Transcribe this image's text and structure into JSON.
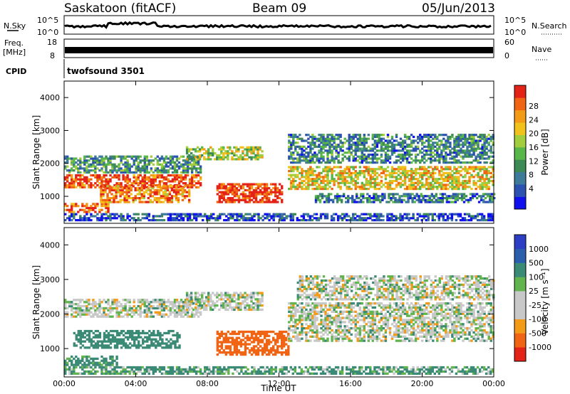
{
  "header": {
    "title": "Saskatoon (fitACF)",
    "beam": "Beam 09",
    "date": "05/Jun/2013"
  },
  "top_panels": {
    "nsky_label": "N.Sky",
    "nsky_ticks": [
      "10^5",
      "10^0"
    ],
    "nsearch_label": "N.Search",
    "freq_label_1": "Freq.",
    "freq_label_2": "[MHz]",
    "freq_ticks": [
      "18",
      "8"
    ],
    "nave_label": "Nave",
    "nave_ticks": [
      "60",
      "0"
    ],
    "cpid_label": "CPID",
    "cpid_value": "twofsound 3501"
  },
  "chart_data": [
    {
      "type": "heatmap",
      "panel": "power",
      "xlabel": "Time UT",
      "ylabel": "Slant Range [km]",
      "xlim": [
        0,
        24
      ],
      "ylim": [
        180,
        4500
      ],
      "x_ticks": [
        "00:00",
        "04:00",
        "08:00",
        "12:00",
        "16:00",
        "20:00",
        "00:00"
      ],
      "y_ticks": [
        "1000",
        "2000",
        "3000",
        "4000"
      ],
      "colorbar_label": "Power [dB]",
      "colorbar_ticks": [
        "28",
        "24",
        "20",
        "16",
        "12",
        "8",
        "4"
      ],
      "colorscale": [
        "#1010ee",
        "#2b52b0",
        "#3e7a9a",
        "#3d8a55",
        "#59b64a",
        "#a2cd3c",
        "#f2c21c",
        "#f39a17",
        "#f06414",
        "#e42318"
      ],
      "regions": [
        {
          "t0": 0.0,
          "t1": 7.6,
          "r0": 1250,
          "r1": 1650,
          "level": 0.9
        },
        {
          "t0": 0.0,
          "t1": 2.5,
          "r0": 500,
          "r1": 800,
          "level": 0.85
        },
        {
          "t0": 2.0,
          "t1": 7.0,
          "r0": 800,
          "r1": 1300,
          "level": 0.8
        },
        {
          "t0": 0.0,
          "t1": 7.6,
          "r0": 1700,
          "r1": 2200,
          "level": 0.35
        },
        {
          "t0": 8.5,
          "t1": 12.2,
          "r0": 800,
          "r1": 1400,
          "level": 0.95
        },
        {
          "t0": 6.8,
          "t1": 11.0,
          "r0": 2100,
          "r1": 2500,
          "level": 0.55
        },
        {
          "t0": 12.5,
          "t1": 24.0,
          "r0": 1200,
          "r1": 1900,
          "level": 0.65
        },
        {
          "t0": 12.5,
          "t1": 24.0,
          "r0": 2000,
          "r1": 2900,
          "level": 0.3
        },
        {
          "t0": 14.0,
          "t1": 24.0,
          "r0": 800,
          "r1": 1100,
          "level": 0.25
        },
        {
          "t0": 0.0,
          "t1": 24.0,
          "r0": 250,
          "r1": 450,
          "level": 0.15
        }
      ]
    },
    {
      "type": "heatmap",
      "panel": "velocity",
      "xlabel": "Time UT",
      "ylabel": "Slant Range [km]",
      "xlim": [
        0,
        24
      ],
      "ylim": [
        180,
        4500
      ],
      "x_ticks": [
        "00:00",
        "04:00",
        "08:00",
        "12:00",
        "16:00",
        "20:00",
        "00:00"
      ],
      "y_ticks": [
        "1000",
        "2000",
        "3000",
        "4000"
      ],
      "colorbar_label": "Velocity [m s⁻¹]",
      "colorbar_ticks": [
        "1000",
        "500",
        "100",
        "25",
        "-25",
        "-100",
        "-500",
        "-1000"
      ],
      "colorscale": [
        "#2c3fc4",
        "#2b5fae",
        "#3b8a76",
        "#62b54e",
        "#c8c8c8",
        "#c8c8c8",
        "#f39a17",
        "#f06414",
        "#e42318"
      ],
      "regions": [
        {
          "t0": 0.0,
          "t1": 7.6,
          "r0": 1900,
          "r1": 2400,
          "vel": 0
        },
        {
          "t0": 0.5,
          "t1": 6.5,
          "r0": 1000,
          "r1": 1500,
          "vel": 200
        },
        {
          "t0": 0.0,
          "t1": 3.0,
          "r0": 500,
          "r1": 800,
          "vel": 120
        },
        {
          "t0": 8.5,
          "t1": 12.5,
          "r0": 800,
          "r1": 1500,
          "vel": -400
        },
        {
          "t0": 6.8,
          "t1": 11.0,
          "r0": 2100,
          "r1": 2600,
          "vel": 0
        },
        {
          "t0": 12.5,
          "t1": 24.0,
          "r0": 1200,
          "r1": 2300,
          "vel": 0
        },
        {
          "t0": 13.0,
          "t1": 24.0,
          "r0": 2400,
          "r1": 3100,
          "vel": 0
        },
        {
          "t0": 0.0,
          "t1": 24.0,
          "r0": 250,
          "r1": 450,
          "vel": 80
        }
      ]
    }
  ]
}
